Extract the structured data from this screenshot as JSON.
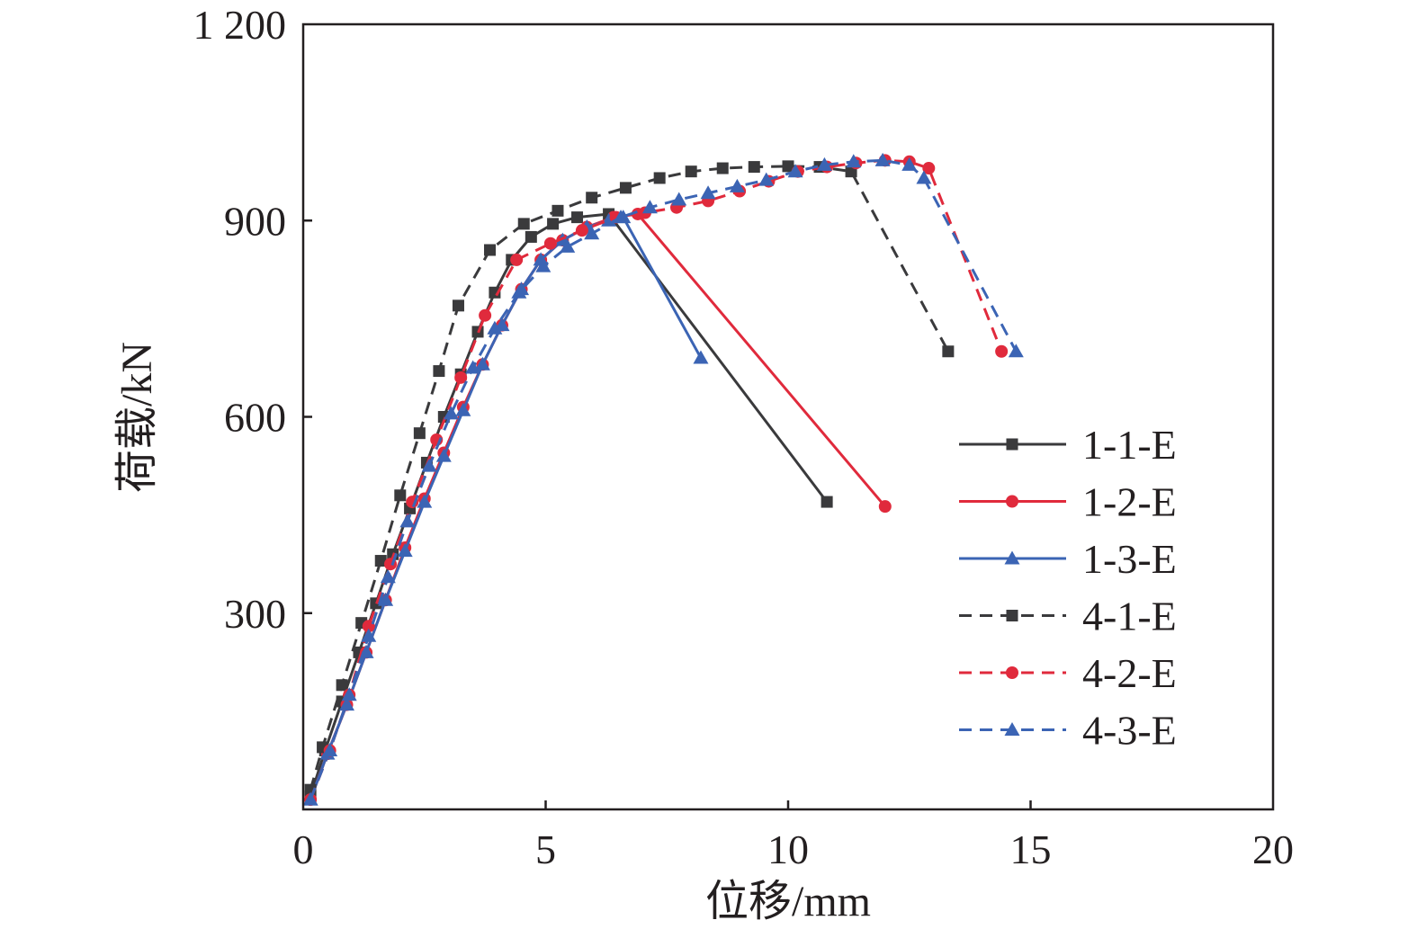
{
  "chart_data": {
    "type": "line",
    "xlabel": "位移/mm",
    "ylabel": "荷载/kN",
    "xlim": [
      0,
      20
    ],
    "ylim": [
      0,
      1200
    ],
    "xticks": [
      0,
      5,
      10,
      15,
      20
    ],
    "xtick_labels": [
      "0",
      "5",
      "10",
      "15",
      "20"
    ],
    "yticks": [
      300,
      600,
      900,
      1200
    ],
    "ytick_labels": [
      "300",
      "600",
      "900",
      "1 200"
    ],
    "grid": false,
    "legend_position": "right",
    "series": [
      {
        "name": "1-1-E",
        "color": "#3a3a3c",
        "dash": false,
        "marker": "square",
        "points": [
          [
            0.15,
            20
          ],
          [
            0.45,
            90
          ],
          [
            0.8,
            165
          ],
          [
            1.15,
            240
          ],
          [
            1.5,
            315
          ],
          [
            1.85,
            390
          ],
          [
            2.2,
            460
          ],
          [
            2.55,
            530
          ],
          [
            2.9,
            600
          ],
          [
            3.25,
            665
          ],
          [
            3.6,
            730
          ],
          [
            3.95,
            790
          ],
          [
            4.3,
            840
          ],
          [
            4.7,
            875
          ],
          [
            5.15,
            895
          ],
          [
            5.65,
            905
          ],
          [
            6.3,
            910
          ],
          [
            10.8,
            470
          ]
        ]
      },
      {
        "name": "1-2-E",
        "color": "#e02a3c",
        "dash": false,
        "marker": "circle",
        "points": [
          [
            0.15,
            15
          ],
          [
            0.5,
            85
          ],
          [
            0.9,
            160
          ],
          [
            1.3,
            240
          ],
          [
            1.7,
            320
          ],
          [
            2.1,
            400
          ],
          [
            2.5,
            475
          ],
          [
            2.9,
            545
          ],
          [
            3.3,
            615
          ],
          [
            3.7,
            680
          ],
          [
            4.1,
            740
          ],
          [
            4.5,
            795
          ],
          [
            4.9,
            840
          ],
          [
            5.35,
            870
          ],
          [
            5.85,
            890
          ],
          [
            6.4,
            905
          ],
          [
            6.9,
            910
          ],
          [
            12.0,
            463
          ]
        ]
      },
      {
        "name": "1-3-E",
        "color": "#3b64b4",
        "dash": false,
        "marker": "triangle",
        "points": [
          [
            0.15,
            15
          ],
          [
            0.5,
            85
          ],
          [
            0.9,
            160
          ],
          [
            1.3,
            240
          ],
          [
            1.7,
            320
          ],
          [
            2.1,
            395
          ],
          [
            2.5,
            470
          ],
          [
            2.9,
            540
          ],
          [
            3.3,
            610
          ],
          [
            3.7,
            680
          ],
          [
            4.1,
            740
          ],
          [
            4.5,
            795
          ],
          [
            4.9,
            840
          ],
          [
            5.35,
            870
          ],
          [
            5.85,
            890
          ],
          [
            6.3,
            900
          ],
          [
            6.6,
            905
          ],
          [
            8.2,
            690
          ]
        ]
      },
      {
        "name": "4-1-E",
        "color": "#3a3a3c",
        "dash": true,
        "marker": "square",
        "points": [
          [
            0.15,
            30
          ],
          [
            0.4,
            95
          ],
          [
            0.8,
            190
          ],
          [
            1.2,
            285
          ],
          [
            1.6,
            380
          ],
          [
            2.0,
            480
          ],
          [
            2.4,
            575
          ],
          [
            2.8,
            670
          ],
          [
            3.2,
            770
          ],
          [
            3.85,
            855
          ],
          [
            4.55,
            895
          ],
          [
            5.25,
            915
          ],
          [
            5.95,
            935
          ],
          [
            6.65,
            950
          ],
          [
            7.35,
            965
          ],
          [
            8.0,
            975
          ],
          [
            8.65,
            980
          ],
          [
            9.3,
            982
          ],
          [
            10.0,
            983
          ],
          [
            10.65,
            982
          ],
          [
            11.3,
            975
          ],
          [
            13.3,
            700
          ]
        ]
      },
      {
        "name": "4-2-E",
        "color": "#e02a3c",
        "dash": true,
        "marker": "circle",
        "points": [
          [
            0.15,
            15
          ],
          [
            0.55,
            90
          ],
          [
            0.95,
            175
          ],
          [
            1.35,
            280
          ],
          [
            1.8,
            375
          ],
          [
            2.25,
            470
          ],
          [
            2.75,
            565
          ],
          [
            3.25,
            660
          ],
          [
            3.75,
            755
          ],
          [
            4.4,
            840
          ],
          [
            5.1,
            865
          ],
          [
            5.75,
            885
          ],
          [
            6.45,
            905
          ],
          [
            7.05,
            912
          ],
          [
            7.7,
            920
          ],
          [
            8.35,
            930
          ],
          [
            9.0,
            945
          ],
          [
            9.6,
            960
          ],
          [
            10.2,
            975
          ],
          [
            10.8,
            982
          ],
          [
            11.4,
            988
          ],
          [
            12.0,
            992
          ],
          [
            12.5,
            990
          ],
          [
            12.9,
            980
          ],
          [
            14.4,
            700
          ]
        ]
      },
      {
        "name": "4-3-E",
        "color": "#3b64b4",
        "dash": true,
        "marker": "triangle",
        "points": [
          [
            0.15,
            15
          ],
          [
            0.55,
            90
          ],
          [
            0.95,
            175
          ],
          [
            1.35,
            265
          ],
          [
            1.75,
            355
          ],
          [
            2.15,
            440
          ],
          [
            2.6,
            525
          ],
          [
            3.05,
            605
          ],
          [
            3.5,
            675
          ],
          [
            3.95,
            735
          ],
          [
            4.45,
            790
          ],
          [
            4.95,
            830
          ],
          [
            5.45,
            860
          ],
          [
            5.95,
            880
          ],
          [
            6.55,
            905
          ],
          [
            7.15,
            920
          ],
          [
            7.75,
            932
          ],
          [
            8.35,
            942
          ],
          [
            8.95,
            952
          ],
          [
            9.55,
            962
          ],
          [
            10.15,
            975
          ],
          [
            10.75,
            985
          ],
          [
            11.35,
            990
          ],
          [
            11.95,
            992
          ],
          [
            12.5,
            985
          ],
          [
            12.8,
            965
          ],
          [
            14.7,
            700
          ]
        ]
      }
    ]
  }
}
